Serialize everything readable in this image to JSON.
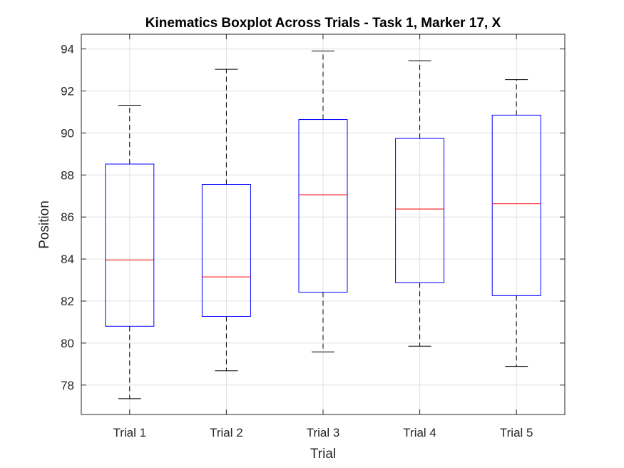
{
  "chart_data": {
    "type": "boxplot",
    "title": "Kinematics Boxplot Across Trials - Task 1, Marker 17, X",
    "xlabel": "Trial",
    "ylabel": "Position",
    "categories": [
      "Trial 1",
      "Trial 2",
      "Trial 3",
      "Trial 4",
      "Trial 5"
    ],
    "boxes": [
      {
        "category": "Trial 1",
        "min": 77.35,
        "q1": 80.8,
        "median": 83.95,
        "q3": 88.52,
        "max": 91.32
      },
      {
        "category": "Trial 2",
        "min": 78.68,
        "q1": 81.27,
        "median": 83.15,
        "q3": 87.55,
        "max": 93.03
      },
      {
        "category": "Trial 3",
        "min": 79.58,
        "q1": 82.42,
        "median": 87.06,
        "q3": 90.64,
        "max": 93.9
      },
      {
        "category": "Trial 4",
        "min": 79.85,
        "q1": 82.87,
        "median": 86.38,
        "q3": 89.74,
        "max": 93.44
      },
      {
        "category": "Trial 5",
        "min": 78.89,
        "q1": 82.26,
        "median": 86.63,
        "q3": 90.85,
        "max": 92.54
      }
    ],
    "ylim": [
      76.6,
      94.7
    ],
    "yticks": [
      78,
      80,
      82,
      84,
      86,
      88,
      90,
      92,
      94
    ],
    "ytick_labels": [
      "78",
      "80",
      "82",
      "84",
      "86",
      "88",
      "90",
      "92",
      "94"
    ],
    "grid": true,
    "colors": {
      "box": "#0000ff",
      "median": "#ff0000",
      "whisker": "#000000",
      "grid": "#e0e0e0",
      "axis": "#262626"
    }
  }
}
